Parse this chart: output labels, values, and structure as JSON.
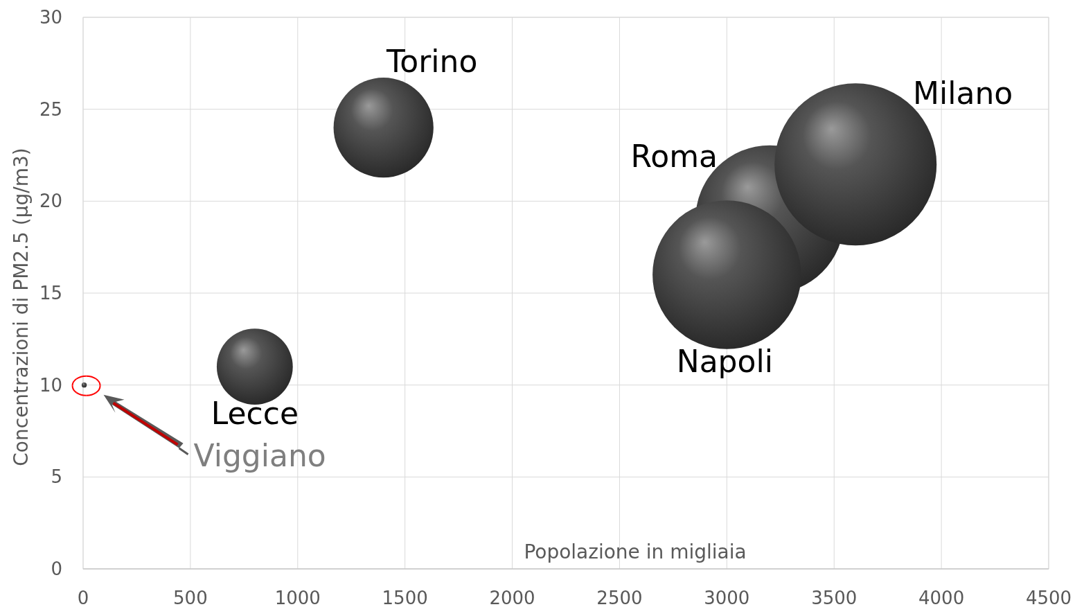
{
  "chart_data": {
    "type": "bubble",
    "xlabel": "Popolazione in migliaia",
    "ylabel": "Concentrazioni di PM2.5 (µg/m3)",
    "xlim": [
      0,
      4500
    ],
    "xticks": [
      0,
      500,
      1000,
      1500,
      2000,
      2500,
      3000,
      3500,
      4000,
      4500
    ],
    "ylim": [
      0,
      30
    ],
    "yticks": [
      0,
      5,
      10,
      15,
      20,
      25,
      30
    ],
    "grid": true,
    "series": [
      {
        "color": "#555555",
        "x": [
          1400,
          800,
          3200,
          3600,
          3000,
          5
        ],
        "values": [
          24,
          11,
          19,
          22,
          16,
          10
        ],
        "sizes": [
          0.38,
          0.22,
          0.84,
          1,
          0.84,
          0.001
        ]
      }
    ],
    "annotations": [
      {
        "text": "Torino",
        "x": 1400,
        "y": 24
      },
      {
        "text": "Lecce",
        "x": 800,
        "y": 11
      },
      {
        "text": "Roma",
        "x": 3200,
        "y": 19
      },
      {
        "text": "Milano",
        "x": 3600,
        "y": 22
      },
      {
        "text": "Napoli",
        "x": 3000,
        "y": 16
      },
      "Viggiano"
    ]
  }
}
